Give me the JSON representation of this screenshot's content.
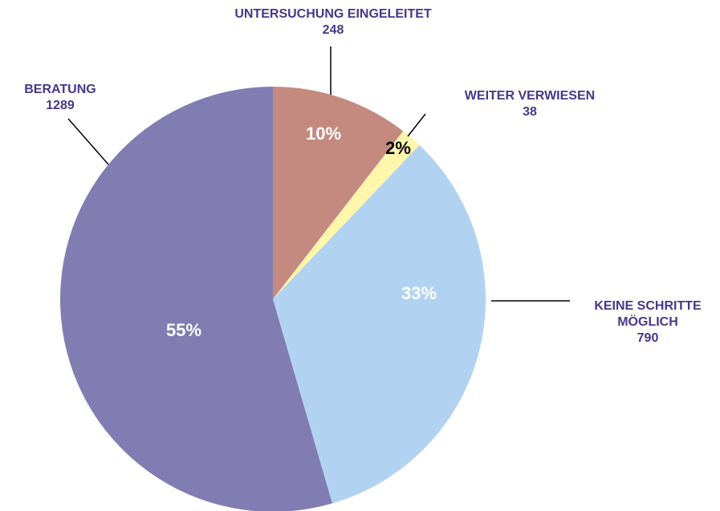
{
  "chart_data": {
    "type": "pie",
    "categories": [
      "UNTERSUCHUNG EINGELEITET",
      "WEITER VERWIESEN",
      "KEINE SCHRITTE MÖGLICH",
      "BERATUNG"
    ],
    "values": [
      248,
      38,
      790,
      1289
    ],
    "percent_labels": [
      "10%",
      "2%",
      "33%",
      "55%"
    ],
    "colors": [
      "#c48a80",
      "#fdf6ab",
      "#b1d3f1",
      "#817db2"
    ],
    "percent_label_colors": [
      "#ffffff",
      "#000000",
      "#ffffff",
      "#ffffff"
    ]
  }
}
